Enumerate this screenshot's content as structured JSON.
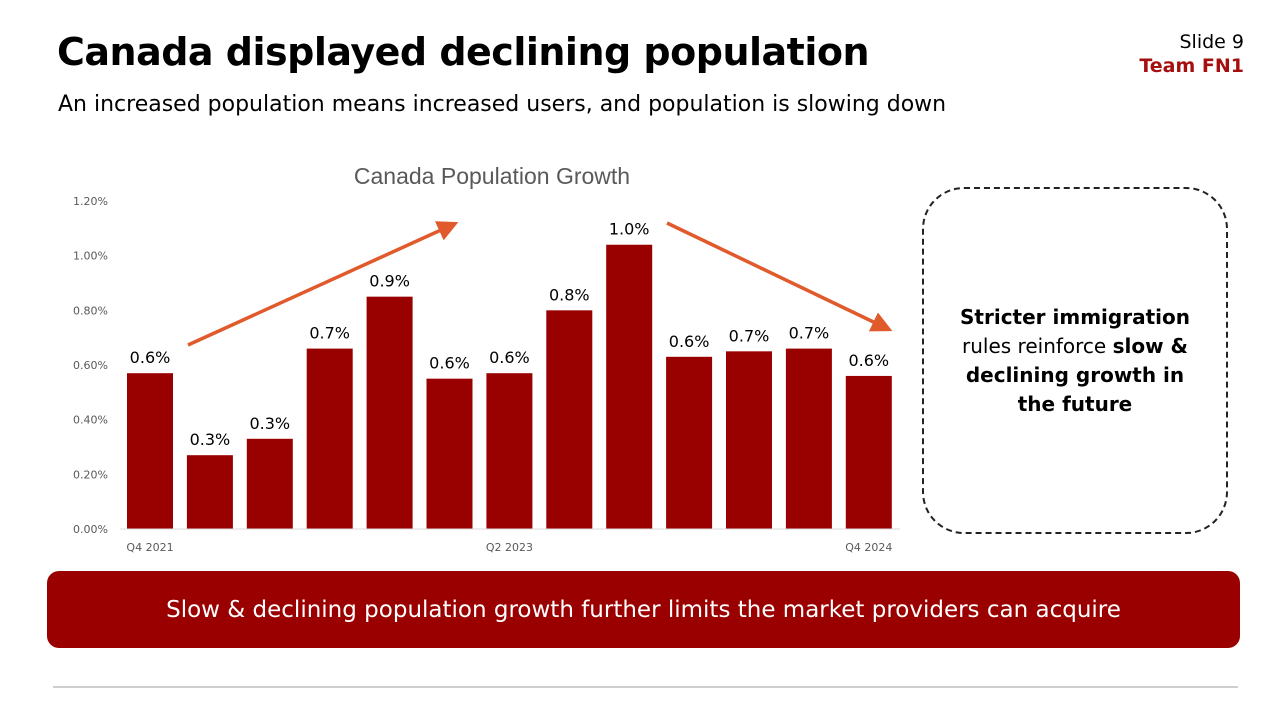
{
  "header": {
    "title": "Canada displayed declining population",
    "subtitle": "An increased population means increased users, and population is slowing down",
    "slide_number": "Slide 9",
    "team": "Team FN1"
  },
  "colors": {
    "bar": "#990000",
    "arrow": "#E05A2B",
    "team": "#A50F0F",
    "banner": "#9A0000"
  },
  "chart_data": {
    "type": "bar",
    "title": "Canada Population Growth",
    "categories": [
      "Q4 2021",
      "",
      "",
      "",
      "",
      "",
      "Q2 2023",
      "",
      "",
      "",
      "",
      "",
      "Q4 2024"
    ],
    "values": [
      0.57,
      0.27,
      0.33,
      0.66,
      0.85,
      0.55,
      0.57,
      0.8,
      1.04,
      0.63,
      0.65,
      0.66,
      0.56
    ],
    "data_labels": [
      "0.6%",
      "0.3%",
      "0.3%",
      "0.7%",
      "0.9%",
      "0.6%",
      "0.6%",
      "0.8%",
      "1.0%",
      "0.6%",
      "0.7%",
      "0.7%",
      "0.6%"
    ],
    "yticks": [
      "0.00%",
      "0.20%",
      "0.40%",
      "0.60%",
      "0.80%",
      "1.00%",
      "1.20%"
    ],
    "ylim": [
      0,
      1.2
    ],
    "yunit": "%",
    "grid": false,
    "annotations": [
      {
        "type": "arrow",
        "direction": "up",
        "from_index": 1,
        "to_index": 5
      },
      {
        "type": "arrow",
        "direction": "down",
        "from_index": 9,
        "to_index": 12
      }
    ]
  },
  "callout": {
    "bold1": "Stricter immigration",
    "normal": " rules reinforce ",
    "bold2": "slow & declining growth in the future"
  },
  "banner": {
    "text": "Slow & declining population growth further limits the market providers can acquire"
  }
}
